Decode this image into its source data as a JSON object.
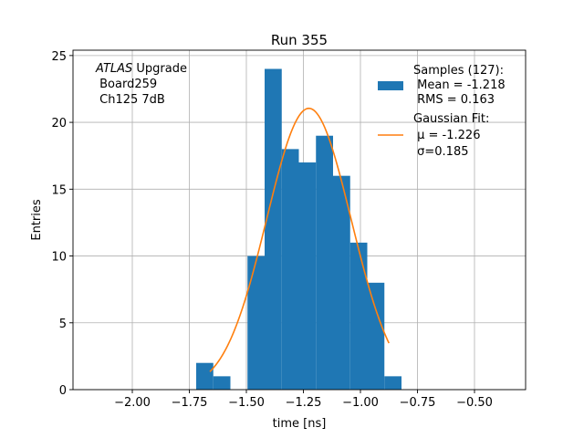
{
  "chart_data": {
    "type": "bar",
    "title": "Run 355",
    "xlabel": "time [ns]",
    "ylabel": "Entries",
    "xlim": [
      -2.26,
      -0.276
    ],
    "ylim": [
      0,
      25.4
    ],
    "grid": true,
    "xticks": [
      -2.0,
      -1.75,
      -1.5,
      -1.25,
      -1.0,
      -0.75,
      -0.5
    ],
    "xtick_labels": [
      "−2.00",
      "−1.75",
      "−1.50",
      "−1.25",
      "−1.00",
      "−0.75",
      "−0.50"
    ],
    "yticks": [
      0,
      5,
      10,
      15,
      20,
      25
    ],
    "ytick_labels": [
      "0",
      "5",
      "10",
      "15",
      "20",
      "25"
    ],
    "histogram": {
      "name": "Samples",
      "color": "#1f77b4",
      "bin_edges": [
        -1.72,
        -1.645,
        -1.57,
        -1.495,
        -1.42,
        -1.345,
        -1.27,
        -1.195,
        -1.12,
        -1.045,
        -0.97,
        -0.895,
        -0.82
      ],
      "counts": [
        2,
        1,
        0,
        10,
        24,
        18,
        17,
        19,
        16,
        11,
        8,
        1
      ]
    },
    "fit": {
      "name": "Gaussian Fit",
      "color": "#ff7f0e",
      "amplitude": 21.05,
      "mu": -1.226,
      "sigma": 0.185,
      "x_range": [
        -1.66,
        -0.875
      ]
    },
    "annotation": {
      "italic": "ATLAS",
      "line1_rest": " Upgrade",
      "line2": " Board259",
      "line3": " Ch125 7dB"
    },
    "legend": {
      "placement": "top-right",
      "hist_lines": [
        "Samples (127):",
        " Mean = -1.218",
        " RMS = 0.163"
      ],
      "fit_lines": [
        "Gaussian Fit:",
        " μ = -1.226",
        " σ=0.185"
      ]
    }
  }
}
